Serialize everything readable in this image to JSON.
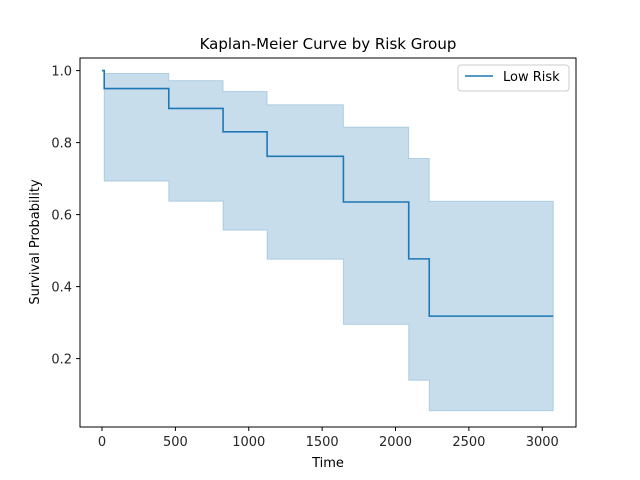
{
  "chart_data": {
    "type": "line",
    "title": "Kaplan-Meier Curve by Risk Group",
    "xlabel": "Time",
    "ylabel": "Survival Probability",
    "xlim": [
      -150,
      3230
    ],
    "ylim": [
      0.01,
      1.035
    ],
    "x_ticks": [
      0,
      500,
      1000,
      1500,
      2000,
      2500,
      3000
    ],
    "x_tick_labels": [
      "0",
      "500",
      "1000",
      "1500",
      "2000",
      "2500",
      "3000"
    ],
    "y_ticks": [
      0.2,
      0.4,
      0.6,
      0.8,
      1.0
    ],
    "y_tick_labels": [
      "0.2",
      "0.4",
      "0.6",
      "0.8",
      "1.0"
    ],
    "grid": false,
    "legend_position": "top-right",
    "series": [
      {
        "name": "Low Risk",
        "color": "#1f77b4",
        "band_color": "#1f77b4",
        "step": "post",
        "x": [
          0,
          15,
          455,
          825,
          1125,
          1645,
          2090,
          2230,
          3075
        ],
        "y": [
          1.0,
          0.95,
          0.895,
          0.83,
          0.762,
          0.635,
          0.477,
          0.318,
          0.318
        ],
        "ci_lower": [
          1.0,
          0.693,
          0.637,
          0.557,
          0.476,
          0.295,
          0.14,
          0.055,
          0.055
        ],
        "ci_upper": [
          1.0,
          0.992,
          0.972,
          0.942,
          0.905,
          0.843,
          0.756,
          0.637,
          0.637
        ]
      }
    ]
  }
}
